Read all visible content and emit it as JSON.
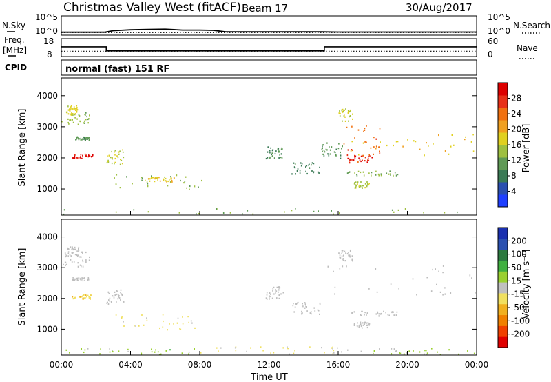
{
  "header": {
    "title": "Christmas Valley West (fitACF)",
    "beam": "Beam 17",
    "date": "30/Aug/2017"
  },
  "colors": {
    "power_scale": [
      "#1f3fff",
      "#2a4fb0",
      "#3a7a55",
      "#5f9a55",
      "#9ec040",
      "#e0d020",
      "#f0a020",
      "#f07010",
      "#e83018",
      "#dd0000"
    ],
    "velocity_scale": [
      "#e00000",
      "#f04000",
      "#f08000",
      "#f0b020",
      "#f0e060",
      "#c0c0c0",
      "#9ad030",
      "#40b040",
      "#2c7a40",
      "#2a50b0",
      "#1a30b0"
    ],
    "ground_scatter": "#bdbdbd"
  },
  "chart_data": [
    {
      "type": "line",
      "name": "noise-panel",
      "left_label": "N.Sky",
      "right_label": "N.Search",
      "left_ticks": [
        "10^5",
        "10^0"
      ],
      "right_ticks": [
        "10^5",
        "10^0"
      ],
      "series": [
        {
          "style": "solid",
          "x": [
            0,
            2.5,
            3,
            4,
            5,
            6,
            7,
            8,
            8.8,
            9.5,
            15,
            16,
            20,
            24
          ],
          "y": [
            0.3,
            0.3,
            0.8,
            1.1,
            1.2,
            1.3,
            1.0,
            1.0,
            0.9,
            0.4,
            0.4,
            0.35,
            0.35,
            0.35
          ]
        },
        {
          "style": "dotted",
          "x": [
            0,
            24
          ],
          "y": [
            0.15,
            0.15
          ]
        }
      ]
    },
    {
      "type": "line",
      "name": "frequency-panel",
      "left_label": "Freq.",
      "left_unit": "[MHz]",
      "left_ticks": [
        "18",
        "8"
      ],
      "right_label": "Nave",
      "right_ticks": [
        "60",
        "0"
      ],
      "series": [
        {
          "name": "Freq.",
          "style": "solid",
          "x": [
            0,
            2.6,
            2.6,
            15.2,
            15.2,
            24
          ],
          "y": [
            13.5,
            13.5,
            10.8,
            10.8,
            13.5,
            13.5
          ]
        },
        {
          "name": "Nave",
          "style": "dotted",
          "x": [
            0,
            24
          ],
          "y": [
            10.6,
            10.6
          ]
        }
      ]
    },
    {
      "type": "heatmap",
      "name": "cpid-panel",
      "label": "CPID",
      "text": "normal (fast) 151 RF"
    },
    {
      "type": "heatmap",
      "name": "power-panel",
      "ylabel": "Slant Range [km]",
      "yticks": [
        1000,
        2000,
        3000,
        4000
      ],
      "ylim": [
        180,
        4550
      ],
      "xlim": [
        0,
        24
      ],
      "xticks": [
        "00:00",
        "04:00",
        "08:00",
        "12:00",
        "16:00",
        "20:00",
        "00:00"
      ],
      "colorbar": {
        "label": "Power [dB]",
        "ticks": [
          "28",
          "24",
          "20",
          "16",
          "12",
          "8",
          "4"
        ],
        "range": [
          0,
          30
        ]
      },
      "regions": [
        {
          "t": [
            0.0,
            1.6
          ],
          "r": [
            3050,
            3550
          ],
          "v": 13
        },
        {
          "t": [
            0.3,
            1.0
          ],
          "r": [
            3400,
            3700
          ],
          "v": 16
        },
        {
          "t": [
            0.6,
            1.6
          ],
          "r": [
            2600,
            2700
          ],
          "v": 10
        },
        {
          "t": [
            0.6,
            1.8
          ],
          "r": [
            2000,
            2150
          ],
          "v": 27
        },
        {
          "t": [
            2.6,
            3.6
          ],
          "r": [
            1800,
            2300
          ],
          "v": 15
        },
        {
          "t": [
            3.0,
            8.2
          ],
          "r": [
            1000,
            1500
          ],
          "v": 13
        },
        {
          "t": [
            4.8,
            6.5
          ],
          "r": [
            1250,
            1400
          ],
          "v": 17
        },
        {
          "t": [
            11.8,
            12.8
          ],
          "r": [
            2000,
            2400
          ],
          "v": 9
        },
        {
          "t": [
            13.3,
            15.0
          ],
          "r": [
            1500,
            1900
          ],
          "v": 8
        },
        {
          "t": [
            15.0,
            16.3
          ],
          "r": [
            2000,
            2500
          ],
          "v": 10
        },
        {
          "t": [
            16.3,
            24.0
          ],
          "r": [
            2100,
            2800
          ],
          "v": 17
        },
        {
          "t": [
            16.3,
            18.5
          ],
          "r": [
            1800,
            3100
          ],
          "v": 23
        },
        {
          "t": [
            16.5,
            18.0
          ],
          "r": [
            1850,
            2100
          ],
          "v": 27
        },
        {
          "t": [
            16.5,
            19.5
          ],
          "r": [
            1450,
            1600
          ],
          "v": 12
        },
        {
          "t": [
            16.8,
            17.8
          ],
          "r": [
            1050,
            1250
          ],
          "v": 14
        },
        {
          "t": [
            16.0,
            16.8
          ],
          "r": [
            3200,
            3600
          ],
          "v": 15
        },
        {
          "t": [
            0.0,
            24.0
          ],
          "r": [
            200,
            400
          ],
          "v": 12
        }
      ]
    },
    {
      "type": "heatmap",
      "name": "velocity-panel",
      "ylabel": "Slant Range [km]",
      "yticks": [
        1000,
        2000,
        3000,
        4000
      ],
      "ylim": [
        180,
        4550
      ],
      "xlim": [
        0,
        24
      ],
      "xticks": [
        "00:00",
        "04:00",
        "08:00",
        "12:00",
        "16:00",
        "20:00",
        "00:00"
      ],
      "xlabel": "Time UT",
      "colorbar": {
        "label": "Velocity [m s⁻¹]",
        "ticks": [
          "200",
          "100",
          "50",
          "15",
          "-15",
          "-50",
          "-100",
          "-200"
        ],
        "range": [
          -250,
          250
        ]
      },
      "regions": [
        {
          "t": [
            0.0,
            1.6
          ],
          "r": [
            3050,
            3550
          ],
          "v": 0,
          "ground": true
        },
        {
          "t": [
            0.3,
            1.0
          ],
          "r": [
            3400,
            3700
          ],
          "v": 0,
          "ground": true
        },
        {
          "t": [
            0.6,
            1.6
          ],
          "r": [
            2600,
            2700
          ],
          "v": 0,
          "ground": true
        },
        {
          "t": [
            0.6,
            1.8
          ],
          "r": [
            2000,
            2150
          ],
          "v": -60
        },
        {
          "t": [
            2.6,
            3.6
          ],
          "r": [
            1800,
            2300
          ],
          "v": 0,
          "ground": true
        },
        {
          "t": [
            3.0,
            8.2
          ],
          "r": [
            1000,
            1500
          ],
          "v": -40
        },
        {
          "t": [
            11.8,
            12.8
          ],
          "r": [
            2000,
            2400
          ],
          "v": 0,
          "ground": true
        },
        {
          "t": [
            13.3,
            15.0
          ],
          "r": [
            1500,
            1900
          ],
          "v": 0,
          "ground": true
        },
        {
          "t": [
            15.0,
            24.0
          ],
          "r": [
            2100,
            3100
          ],
          "v": 0,
          "ground": true
        },
        {
          "t": [
            16.0,
            16.8
          ],
          "r": [
            3200,
            3600
          ],
          "v": 0,
          "ground": true
        },
        {
          "t": [
            16.5,
            19.5
          ],
          "r": [
            1450,
            1600
          ],
          "v": 0,
          "ground": true
        },
        {
          "t": [
            16.8,
            17.8
          ],
          "r": [
            1050,
            1250
          ],
          "v": 0,
          "ground": true
        },
        {
          "t": [
            0.0,
            8.0
          ],
          "r": [
            200,
            400
          ],
          "v": 40
        },
        {
          "t": [
            8.0,
            16.0
          ],
          "r": [
            200,
            450
          ],
          "v": -35
        },
        {
          "t": [
            16.0,
            24.0
          ],
          "r": [
            200,
            400
          ],
          "v": 30
        }
      ]
    }
  ]
}
